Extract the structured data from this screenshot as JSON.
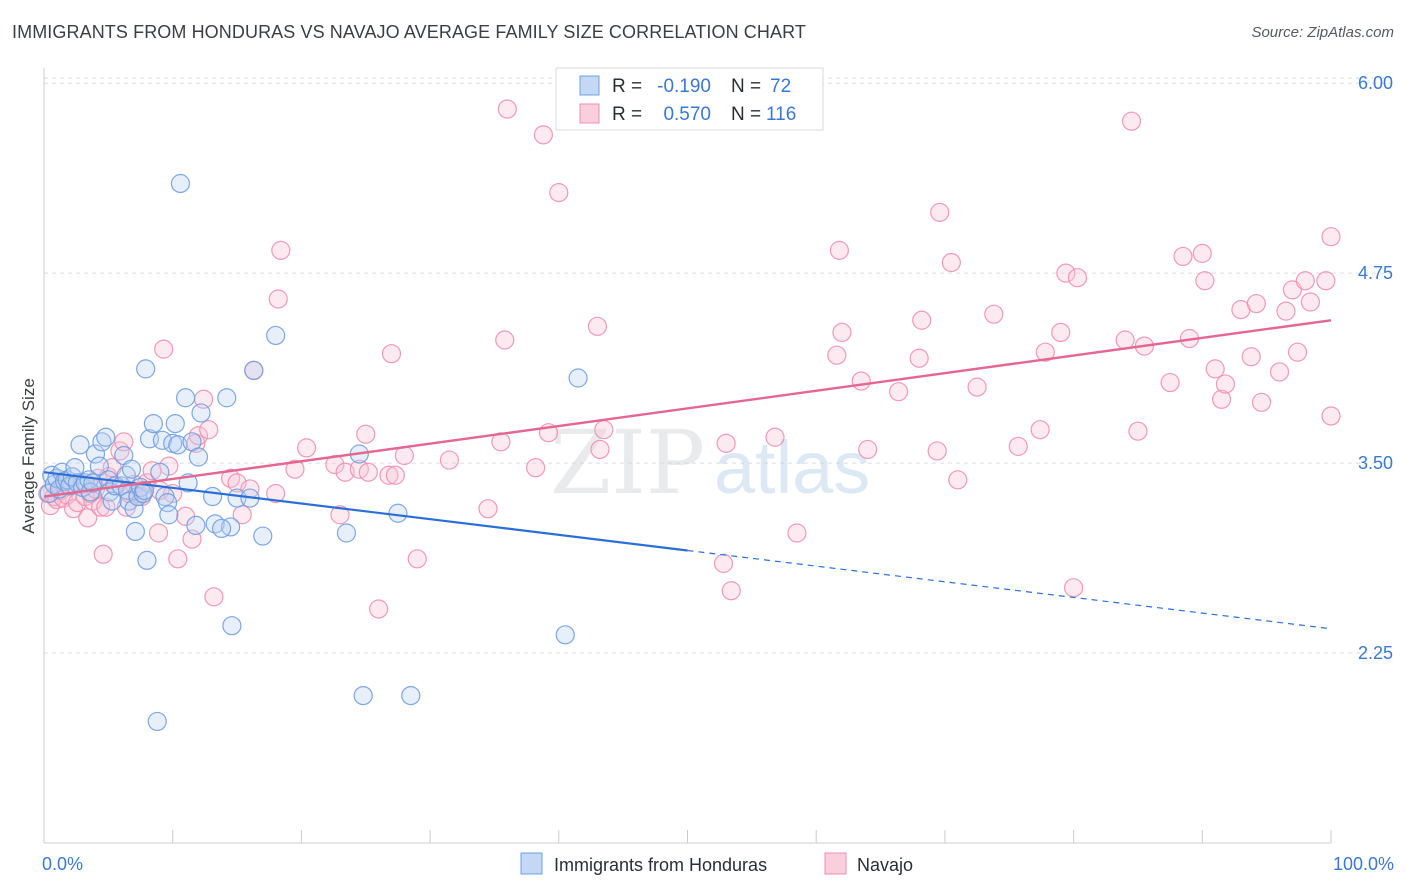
{
  "header": {
    "title": "IMMIGRANTS FROM HONDURAS VS NAVAJO AVERAGE FAMILY SIZE CORRELATION CHART",
    "source": "Source: ZipAtlas.com"
  },
  "watermark": {
    "zip": "ZIP",
    "atlas": "atlas"
  },
  "legend_box": {
    "rows": [
      {
        "r_label": "R =",
        "r_value": "-0.190",
        "n_label": "N =",
        "n_value": "72"
      },
      {
        "r_label": "R =",
        "r_value": "0.570",
        "n_label": "N =",
        "n_value": "116"
      }
    ]
  },
  "colors": {
    "blue": "#6f9fe0",
    "blue_line": "#2b6fd6",
    "pink": "#ee8fb0",
    "pink_line": "#e5678f",
    "value_text": "#3a78d4",
    "grid": "#dadde1"
  },
  "chart_data": {
    "type": "scatter",
    "xlabel": "",
    "ylabel": "Average Family Size",
    "xlim": [
      0,
      100
    ],
    "ylim": [
      1.0,
      6.1
    ],
    "x_tick_labels": [
      "0.0%",
      "100.0%"
    ],
    "y_ticks": [
      2.25,
      3.5,
      4.75,
      6.0
    ],
    "y_tick_labels": [
      "2.25",
      "3.50",
      "4.75",
      "6.00"
    ],
    "grid": true,
    "legend_position": "bottom",
    "series": [
      {
        "name": "Immigrants from Honduras",
        "color": "#6f9fe0",
        "points": [
          [
            0.4,
            3.3
          ],
          [
            0.6,
            3.42
          ],
          [
            0.8,
            3.36
          ],
          [
            1.0,
            3.4
          ],
          [
            1.2,
            3.33
          ],
          [
            1.4,
            3.44
          ],
          [
            1.6,
            3.38
          ],
          [
            1.8,
            3.39
          ],
          [
            2.0,
            3.35
          ],
          [
            2.2,
            3.41
          ],
          [
            2.4,
            3.47
          ],
          [
            2.6,
            3.37
          ],
          [
            2.8,
            3.62
          ],
          [
            3.0,
            3.34
          ],
          [
            3.2,
            3.37
          ],
          [
            3.5,
            3.39
          ],
          [
            3.6,
            3.31
          ],
          [
            3.8,
            3.37
          ],
          [
            4.0,
            3.56
          ],
          [
            4.3,
            3.48
          ],
          [
            4.5,
            3.64
          ],
          [
            4.8,
            3.67
          ],
          [
            5.0,
            3.39
          ],
          [
            5.1,
            3.31
          ],
          [
            5.3,
            3.25
          ],
          [
            5.5,
            3.35
          ],
          [
            6.0,
            3.35
          ],
          [
            6.2,
            3.55
          ],
          [
            6.4,
            3.42
          ],
          [
            6.5,
            3.32
          ],
          [
            6.6,
            3.25
          ],
          [
            6.8,
            3.46
          ],
          [
            7.0,
            3.2
          ],
          [
            7.1,
            3.05
          ],
          [
            7.3,
            3.28
          ],
          [
            7.5,
            3.34
          ],
          [
            7.7,
            3.3
          ],
          [
            7.8,
            3.32
          ],
          [
            7.9,
            4.12
          ],
          [
            8.0,
            2.86
          ],
          [
            8.2,
            3.66
          ],
          [
            8.5,
            3.76
          ],
          [
            8.8,
            1.8
          ],
          [
            9.0,
            3.44
          ],
          [
            9.2,
            3.65
          ],
          [
            9.4,
            3.28
          ],
          [
            9.6,
            3.24
          ],
          [
            9.7,
            3.16
          ],
          [
            10.0,
            3.63
          ],
          [
            10.2,
            3.76
          ],
          [
            10.4,
            3.62
          ],
          [
            10.6,
            5.34
          ],
          [
            11.0,
            3.93
          ],
          [
            11.2,
            3.37
          ],
          [
            11.5,
            3.64
          ],
          [
            11.8,
            3.09
          ],
          [
            12.0,
            3.54
          ],
          [
            12.2,
            3.83
          ],
          [
            13.1,
            3.28
          ],
          [
            13.3,
            3.1
          ],
          [
            14.2,
            3.93
          ],
          [
            14.5,
            3.08
          ],
          [
            14.6,
            2.43
          ],
          [
            15.0,
            3.27
          ],
          [
            16.0,
            3.27
          ],
          [
            16.3,
            4.11
          ],
          [
            17.0,
            3.02
          ],
          [
            18.0,
            4.34
          ],
          [
            23.5,
            3.04
          ],
          [
            24.5,
            3.56
          ],
          [
            24.8,
            1.97
          ],
          [
            27.5,
            3.17
          ],
          [
            28.5,
            1.97
          ],
          [
            40.5,
            2.37
          ],
          [
            41.5,
            4.06
          ],
          [
            13.8,
            3.07
          ]
        ]
      },
      {
        "name": "Navajo",
        "color": "#ee8fb0",
        "points": [
          [
            0.3,
            3.3
          ],
          [
            0.5,
            3.22
          ],
          [
            0.8,
            3.28
          ],
          [
            1.0,
            3.26
          ],
          [
            1.3,
            3.32
          ],
          [
            1.5,
            3.27
          ],
          [
            1.8,
            3.29
          ],
          [
            2.0,
            3.35
          ],
          [
            2.3,
            3.2
          ],
          [
            2.6,
            3.24
          ],
          [
            3.0,
            3.36
          ],
          [
            3.2,
            3.28
          ],
          [
            3.4,
            3.14
          ],
          [
            3.6,
            3.3
          ],
          [
            3.8,
            3.25
          ],
          [
            4.0,
            3.33
          ],
          [
            4.2,
            3.4
          ],
          [
            4.4,
            3.21
          ],
          [
            4.6,
            2.9
          ],
          [
            4.8,
            3.21
          ],
          [
            5.0,
            3.41
          ],
          [
            5.3,
            3.47
          ],
          [
            5.6,
            3.35
          ],
          [
            5.9,
            3.58
          ],
          [
            6.2,
            3.64
          ],
          [
            6.4,
            3.21
          ],
          [
            6.6,
            3.3
          ],
          [
            7.0,
            3.36
          ],
          [
            7.3,
            3.3
          ],
          [
            7.6,
            3.28
          ],
          [
            8.0,
            3.37
          ],
          [
            8.4,
            3.45
          ],
          [
            8.9,
            3.04
          ],
          [
            9.0,
            3.32
          ],
          [
            9.3,
            4.25
          ],
          [
            9.7,
            3.48
          ],
          [
            10.0,
            3.3
          ],
          [
            10.4,
            2.87
          ],
          [
            11.0,
            3.15
          ],
          [
            11.5,
            3.0
          ],
          [
            11.8,
            3.63
          ],
          [
            12.0,
            3.68
          ],
          [
            12.4,
            3.92
          ],
          [
            12.8,
            3.72
          ],
          [
            13.2,
            2.62
          ],
          [
            14.5,
            3.4
          ],
          [
            15.0,
            3.37
          ],
          [
            15.4,
            3.16
          ],
          [
            16.0,
            3.33
          ],
          [
            16.3,
            4.11
          ],
          [
            18.0,
            3.3
          ],
          [
            18.2,
            4.58
          ],
          [
            18.4,
            4.9
          ],
          [
            19.5,
            3.46
          ],
          [
            20.4,
            3.6
          ],
          [
            22.6,
            3.49
          ],
          [
            23.0,
            3.16
          ],
          [
            23.4,
            3.44
          ],
          [
            24.5,
            3.46
          ],
          [
            25.0,
            3.69
          ],
          [
            25.2,
            3.44
          ],
          [
            26.0,
            2.54
          ],
          [
            26.8,
            3.42
          ],
          [
            27.0,
            4.22
          ],
          [
            27.3,
            3.42
          ],
          [
            28.0,
            3.55
          ],
          [
            29.0,
            2.87
          ],
          [
            31.5,
            3.52
          ],
          [
            34.5,
            3.2
          ],
          [
            35.5,
            3.64
          ],
          [
            35.8,
            4.31
          ],
          [
            36.0,
            5.83
          ],
          [
            38.2,
            3.47
          ],
          [
            38.8,
            5.66
          ],
          [
            39.2,
            3.7
          ],
          [
            40.0,
            5.28
          ],
          [
            43.0,
            4.4
          ],
          [
            43.2,
            3.59
          ],
          [
            43.5,
            3.72
          ],
          [
            52.8,
            2.84
          ],
          [
            53.0,
            3.63
          ],
          [
            53.4,
            2.66
          ],
          [
            56.8,
            3.67
          ],
          [
            58.5,
            3.04
          ],
          [
            61.6,
            4.21
          ],
          [
            61.8,
            4.9
          ],
          [
            62.0,
            4.36
          ],
          [
            63.5,
            4.04
          ],
          [
            64.0,
            3.59
          ],
          [
            66.4,
            3.97
          ],
          [
            68.0,
            4.19
          ],
          [
            68.2,
            4.44
          ],
          [
            69.4,
            3.58
          ],
          [
            69.6,
            5.15
          ],
          [
            70.5,
            4.82
          ],
          [
            71.0,
            3.39
          ],
          [
            72.5,
            4.0
          ],
          [
            73.8,
            4.48
          ],
          [
            75.7,
            3.61
          ],
          [
            77.8,
            4.23
          ],
          [
            79.0,
            4.36
          ],
          [
            79.4,
            4.75
          ],
          [
            80.0,
            2.68
          ],
          [
            80.3,
            4.72
          ],
          [
            84.0,
            4.31
          ],
          [
            84.5,
            5.75
          ],
          [
            85.0,
            3.71
          ],
          [
            85.5,
            4.27
          ],
          [
            87.5,
            4.03
          ],
          [
            88.5,
            4.86
          ],
          [
            89.0,
            4.32
          ],
          [
            90.0,
            4.88
          ],
          [
            90.2,
            4.7
          ],
          [
            91.0,
            4.12
          ],
          [
            91.5,
            3.92
          ],
          [
            91.8,
            4.02
          ],
          [
            93.0,
            4.51
          ],
          [
            93.8,
            4.2
          ],
          [
            94.2,
            4.55
          ],
          [
            94.6,
            3.9
          ],
          [
            96.0,
            4.1
          ],
          [
            96.5,
            4.5
          ],
          [
            97.0,
            4.64
          ],
          [
            97.4,
            4.23
          ],
          [
            98.0,
            4.7
          ],
          [
            98.4,
            4.56
          ],
          [
            99.6,
            4.7
          ],
          [
            100.0,
            3.81
          ],
          [
            100.0,
            4.99
          ],
          [
            77.4,
            3.72
          ]
        ]
      }
    ],
    "trendlines": [
      {
        "series": "Immigrants from Honduras",
        "x0": 0,
        "y0": 3.44,
        "x_solid_end": 50,
        "x1": 100,
        "y1": 2.41
      },
      {
        "series": "Navajo",
        "x0": 0,
        "y0": 3.28,
        "x1": 100,
        "y1": 4.44
      }
    ]
  }
}
